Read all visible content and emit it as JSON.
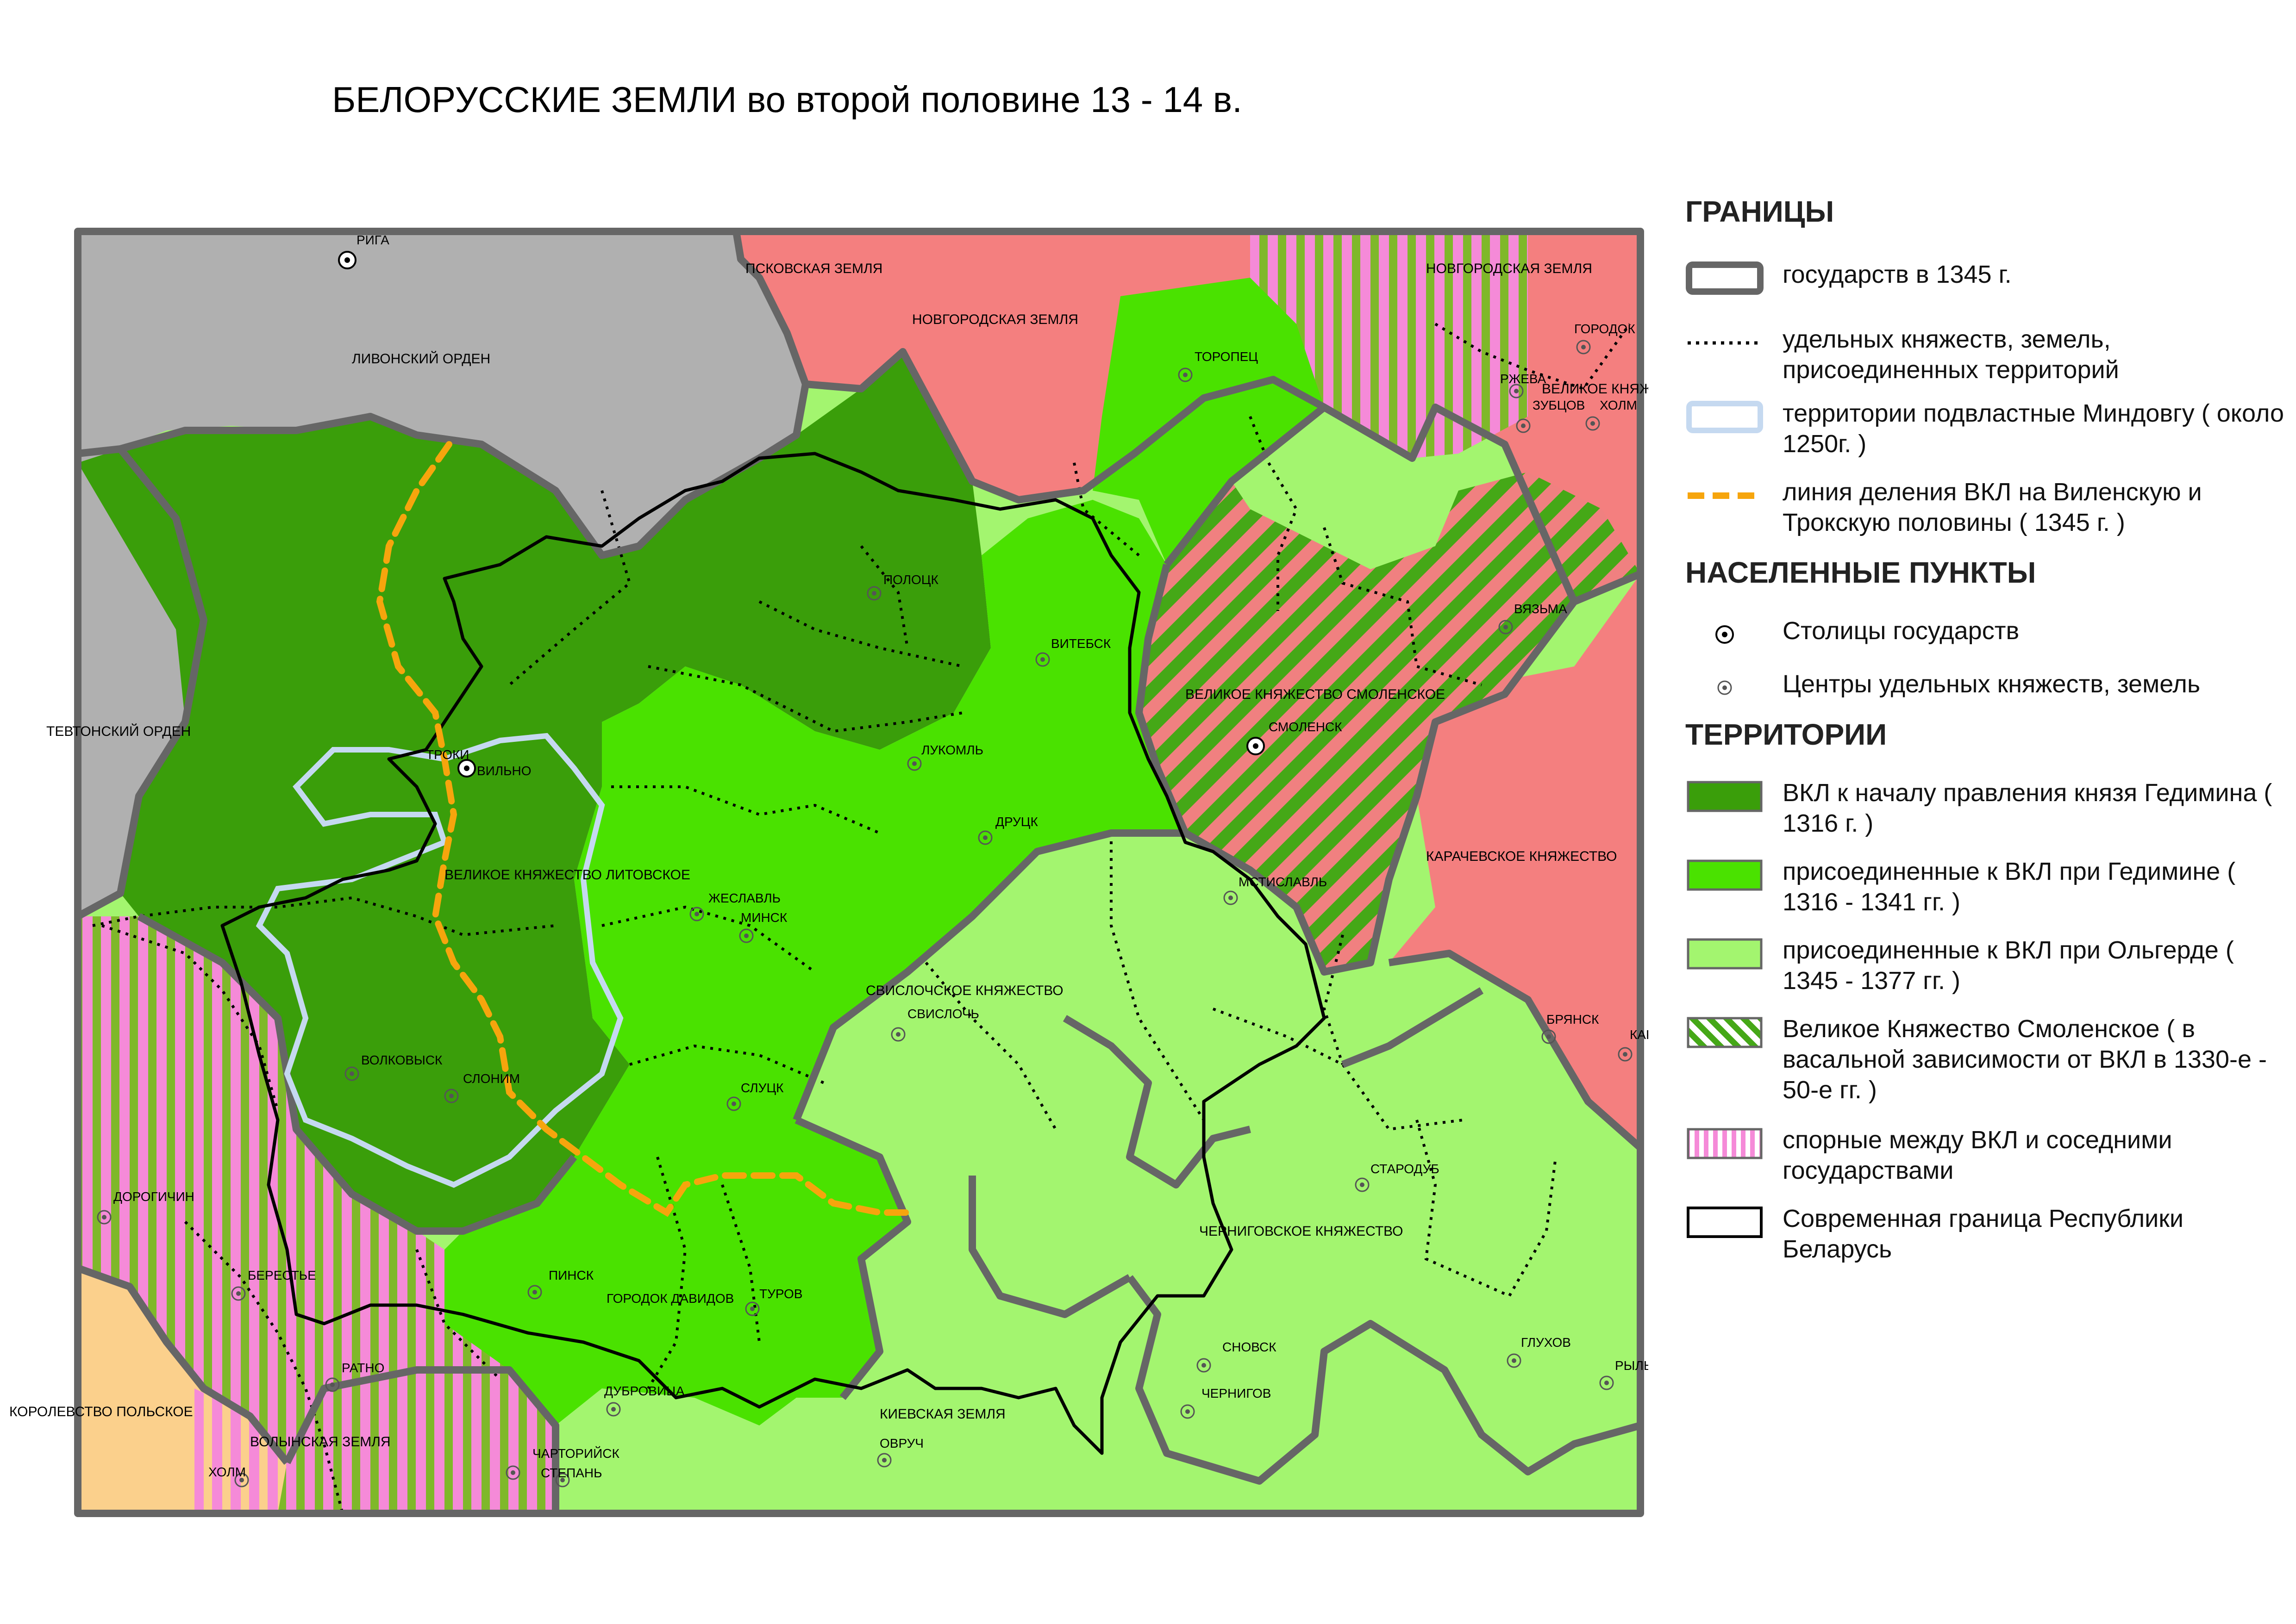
{
  "title": "БЕЛОРУССКИЕ ЗЕМЛИ во второй половине 13 - 14 в.",
  "colors": {
    "gdl_1316": "#3a9e0a",
    "gedimin": "#4ae200",
    "olgerd": "#a3f56f",
    "smolensk_stripe_a": "#45a817",
    "smolensk_stripe_b": "#f08080",
    "disputed_stripe_a": "#f58ad8",
    "disputed_stripe_b": "#7fb82a",
    "foreign_grey": "#b0b0b0",
    "foreign_pink": "#f47f7f",
    "poland": "#fbd08c",
    "state_border": "#666666",
    "mindaugas_border": "#c5d9f0",
    "division_line": "#f6a50d",
    "modern_border": "#000000"
  },
  "regions": {
    "livonian_order": "ЛИВОНСКИЙ ОРДЕН",
    "teutonic_order": "ТЕВТОНСКИЙ ОРДЕН",
    "pskov_land": "ПСКОВСКАЯ ЗЕМЛЯ",
    "novgorod_land_1": "НОВГОРОДСКАЯ ЗЕМЛЯ",
    "novgorod_land_2": "НОВГОРОДСКАЯ ЗЕМЛЯ",
    "tver": "ВЕЛИКОЕ КНЯЖЕСТВО ТВЕРСКОЕ",
    "smolensk_principality": "ВЕЛИКОЕ КНЯЖЕСТВО СМОЛЕНСКОЕ",
    "karachev_principality": "КАРАЧЕВСКОЕ КНЯЖЕСТВО",
    "gdl": "ВЕЛИКОЕ КНЯЖЕСТВО ЛИТОВСКОЕ",
    "svisloch_principality": "СВИСЛОЧСКОЕ КНЯЖЕСТВО",
    "chernigov_principality": "ЧЕРНИГОВСКОЕ КНЯЖЕСТВО",
    "kiev_land": "КИЕВСКАЯ ЗЕМЛЯ",
    "volyn_land": "ВОЛЫНСКАЯ ЗЕМЛЯ",
    "poland": "КОРОЛЕВСТВО ПОЛЬСКОЕ"
  },
  "towns": {
    "riga": "РИГА",
    "troki": "ТРОКИ",
    "vilno": "ВИЛЬНО",
    "polotsk": "ПОЛОЦК",
    "vitebsk": "ВИТЕБСК",
    "toropets": "ТОРОПЕЦ",
    "gorodok": "ГОРОДОК",
    "rzheva": "РЖЕВА",
    "zubtsov": "ЗУБЦОВ",
    "kholm_n": "ХОЛМ",
    "vyazma": "ВЯЗЬМА",
    "smolensk": "СМОЛЕНСК",
    "lukoml": "ЛУКОМЛЬ",
    "druts": "ДРУЦК",
    "mstislavl": "МСТИСЛАВЛЬ",
    "zheslavl": "ЖЕСЛАВЛЬ",
    "minsk": "МИНСК",
    "svisloch": "СВИСЛОЧЬ",
    "bryansk": "БРЯНСК",
    "karachev": "КАРАЧЕВ",
    "volkovysk": "ВОЛКОВЫСК",
    "slonim": "СЛОНИМ",
    "slutsk": "СЛУЦК",
    "starodub": "СТАРОДУБ",
    "drogichin": "ДОРОГИЧИН",
    "berestye": "БЕРЕСТЬЕ",
    "pinsk": "ПИНСК",
    "gorodok_davidov": "ГОРОДОК ДАВИДОВ",
    "turov": "ТУРОВ",
    "ratno": "РАТНО",
    "dubrovitsa": "ДУБРОВИЦА",
    "chartoriysk": "ЧАРТОРИЙСК",
    "stepan": "СТЕПАНЬ",
    "kholm_s": "ХОЛМ",
    "ovruch": "ОВРУЧ",
    "snovsk": "СНОВСК",
    "chernigov": "ЧЕРНИГОВ",
    "glukhov": "ГЛУХОВ",
    "rylsk": "РЫЛЬСК"
  },
  "legend": {
    "borders_heading": "ГРАНИЦЫ",
    "states_1345": "государств в 1345 г.",
    "appanage": "удельных княжеств, земель, присоединенных территорий",
    "mindaugas": "территории подвластные Миндовгу ( около 1250г. )",
    "division_line": "линия деления ВКЛ на Виленскую и Трокскую половины ( 1345 г. )",
    "settlements_heading": "НАСЕЛЕННЫЕ ПУНКТЫ",
    "capitals": "Столицы государств",
    "centers": "Центры удельных княжеств, земель",
    "territories_heading": "ТЕРРИТОРИИ",
    "gdl_1316": "ВКЛ к началу правления князя Гедимина ( 1316 г. )",
    "gedimin": "присоединенные к ВКЛ при Гедимине ( 1316 - 1341 гг. )",
    "olgerd": "присоединенные к ВКЛ при Ольгерде ( 1345 - 1377 гг. )",
    "smolensk": "Великое Княжество Смоленское ( в васальной зависимости от ВКЛ в 1330-е - 50-е гг. )",
    "disputed": "спорные между ВКЛ и соседними государствами",
    "modern_border": "Современная граница Республики Беларусь"
  }
}
